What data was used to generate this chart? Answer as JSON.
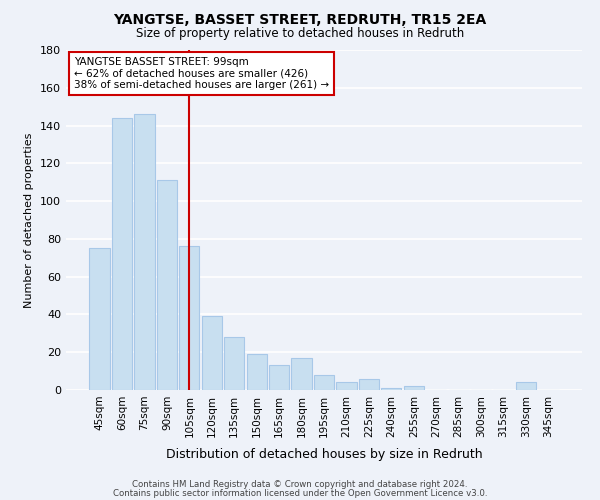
{
  "title": "YANGTSE, BASSET STREET, REDRUTH, TR15 2EA",
  "subtitle": "Size of property relative to detached houses in Redruth",
  "xlabel": "Distribution of detached houses by size in Redruth",
  "ylabel": "Number of detached properties",
  "bar_color": "#c8dff0",
  "bar_edge_color": "#a8c8e8",
  "categories": [
    "45sqm",
    "60sqm",
    "75sqm",
    "90sqm",
    "105sqm",
    "120sqm",
    "135sqm",
    "150sqm",
    "165sqm",
    "180sqm",
    "195sqm",
    "210sqm",
    "225sqm",
    "240sqm",
    "255sqm",
    "270sqm",
    "285sqm",
    "300sqm",
    "315sqm",
    "330sqm",
    "345sqm"
  ],
  "values": [
    75,
    144,
    146,
    111,
    76,
    39,
    28,
    19,
    13,
    17,
    8,
    4,
    6,
    1,
    2,
    0,
    0,
    0,
    0,
    4,
    0
  ],
  "ylim": [
    0,
    180
  ],
  "yticks": [
    0,
    20,
    40,
    60,
    80,
    100,
    120,
    140,
    160,
    180
  ],
  "vline_color": "#cc0000",
  "annotation_title": "YANGTSE BASSET STREET: 99sqm",
  "annotation_line1": "← 62% of detached houses are smaller (426)",
  "annotation_line2": "38% of semi-detached houses are larger (261) →",
  "footer_line1": "Contains HM Land Registry data © Crown copyright and database right 2024.",
  "footer_line2": "Contains public sector information licensed under the Open Government Licence v3.0.",
  "background_color": "#eef2f9",
  "plot_background": "#eef2f9",
  "grid_color": "#ffffff"
}
